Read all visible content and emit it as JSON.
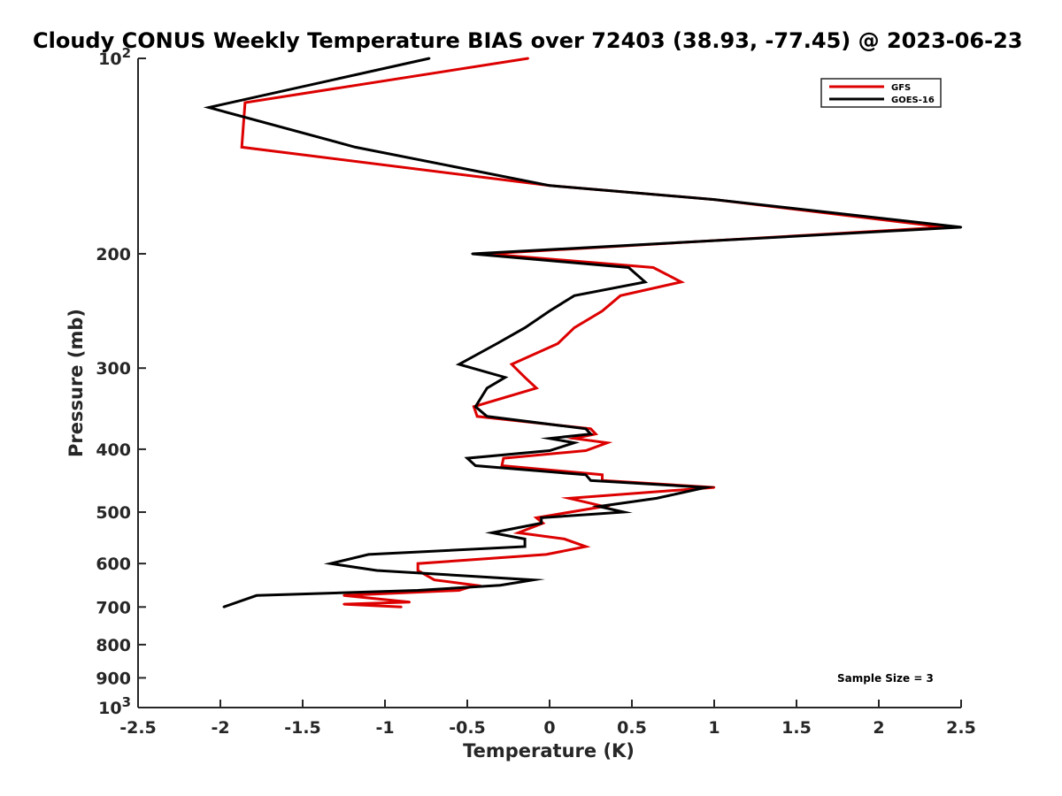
{
  "chart_data": {
    "type": "line",
    "title": "Cloudy CONUS Weekly Temperature BIAS over 72403 (38.93, -77.45) @ 2023-06-23",
    "xlabel": "Temperature (K)",
    "ylabel": "Pressure (mb)",
    "xlim": [
      -2.5,
      2.5
    ],
    "ylim": [
      100,
      1000
    ],
    "y_scale": "log",
    "y_reversed": true,
    "grid": false,
    "legend_position": "top-right",
    "x_ticks": [
      -2.5,
      -2,
      -1.5,
      -1,
      -0.5,
      0,
      0.5,
      1,
      1.5,
      2,
      2.5
    ],
    "x_tick_labels": [
      "-2.5",
      "-2",
      "-1.5",
      "-1",
      "-0.5",
      "0",
      "0.5",
      "1",
      "1.5",
      "2",
      "2.5"
    ],
    "y_ticks": [
      100,
      200,
      300,
      400,
      500,
      600,
      700,
      800,
      900,
      1000
    ],
    "y_tick_labels": [
      {
        "base": "10",
        "exp": "2"
      },
      {
        "base": "200",
        "exp": ""
      },
      {
        "base": "300",
        "exp": ""
      },
      {
        "base": "400",
        "exp": ""
      },
      {
        "base": "500",
        "exp": ""
      },
      {
        "base": "600",
        "exp": ""
      },
      {
        "base": "700",
        "exp": ""
      },
      {
        "base": "800",
        "exp": ""
      },
      {
        "base": "900",
        "exp": ""
      },
      {
        "base": "10",
        "exp": "3"
      }
    ],
    "annotation": "Sample Size = 3",
    "series": [
      {
        "name": "GFS",
        "color": "#dd0000",
        "points": [
          [
            -0.13,
            100
          ],
          [
            -1.85,
            117
          ],
          [
            -1.87,
            137
          ],
          [
            0.0,
            157
          ],
          [
            1.0,
            165
          ],
          [
            2.4,
            182
          ],
          [
            -0.38,
            200
          ],
          [
            0.63,
            210
          ],
          [
            0.8,
            221
          ],
          [
            0.43,
            232
          ],
          [
            0.32,
            245
          ],
          [
            0.15,
            260
          ],
          [
            0.05,
            275
          ],
          [
            -0.23,
            296
          ],
          [
            -0.15,
            310
          ],
          [
            -0.08,
            322
          ],
          [
            -0.46,
            344
          ],
          [
            -0.44,
            356
          ],
          [
            0.25,
            372
          ],
          [
            0.28,
            379
          ],
          [
            0.15,
            385
          ],
          [
            0.35,
            391
          ],
          [
            0.22,
            402
          ],
          [
            -0.28,
            413
          ],
          [
            -0.29,
            424
          ],
          [
            0.32,
            438
          ],
          [
            0.32,
            447
          ],
          [
            1.0,
            458
          ],
          [
            0.12,
            476
          ],
          [
            0.33,
            490
          ],
          [
            -0.08,
            510
          ],
          [
            -0.04,
            520
          ],
          [
            -0.19,
            538
          ],
          [
            0.09,
            550
          ],
          [
            0.22,
            565
          ],
          [
            -0.02,
            581
          ],
          [
            -0.8,
            600
          ],
          [
            -0.8,
            615
          ],
          [
            -0.7,
            636
          ],
          [
            -0.45,
            648
          ],
          [
            -0.55,
            660
          ],
          [
            -1.25,
            672
          ],
          [
            -0.85,
            688
          ],
          [
            -1.25,
            693
          ],
          [
            -0.9,
            700
          ]
        ]
      },
      {
        "name": "GOES-16",
        "color": "#000000",
        "points": [
          [
            -0.73,
            100
          ],
          [
            -2.07,
            119
          ],
          [
            -1.18,
            137
          ],
          [
            0.0,
            157
          ],
          [
            1.0,
            165
          ],
          [
            2.5,
            182
          ],
          [
            -0.47,
            200
          ],
          [
            0.48,
            210
          ],
          [
            0.58,
            221
          ],
          [
            0.15,
            232
          ],
          [
            0.0,
            245
          ],
          [
            -0.15,
            260
          ],
          [
            -0.32,
            275
          ],
          [
            -0.55,
            296
          ],
          [
            -0.27,
            310
          ],
          [
            -0.38,
            322
          ],
          [
            -0.45,
            344
          ],
          [
            -0.38,
            356
          ],
          [
            0.22,
            372
          ],
          [
            0.25,
            379
          ],
          [
            0.0,
            385
          ],
          [
            0.15,
            391
          ],
          [
            0.0,
            402
          ],
          [
            -0.5,
            413
          ],
          [
            -0.45,
            424
          ],
          [
            0.22,
            438
          ],
          [
            0.25,
            447
          ],
          [
            0.95,
            458
          ],
          [
            0.65,
            476
          ],
          [
            0.3,
            490
          ],
          [
            0.45,
            500
          ],
          [
            -0.05,
            510
          ],
          [
            -0.05,
            520
          ],
          [
            -0.35,
            538
          ],
          [
            -0.15,
            550
          ],
          [
            -0.15,
            565
          ],
          [
            -1.1,
            581
          ],
          [
            -1.33,
            600
          ],
          [
            -1.05,
            615
          ],
          [
            -0.1,
            636
          ],
          [
            -0.3,
            648
          ],
          [
            -0.8,
            660
          ],
          [
            -1.78,
            672
          ],
          [
            -1.98,
            700
          ]
        ]
      }
    ]
  }
}
